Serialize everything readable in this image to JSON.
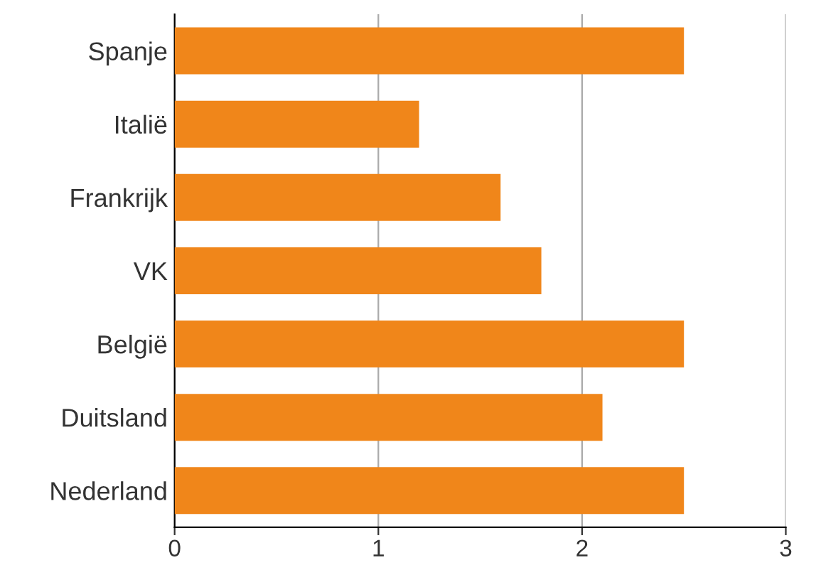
{
  "chart_data": {
    "type": "bar",
    "orientation": "horizontal",
    "categories": [
      "Spanje",
      "Italië",
      "Frankrijk",
      "VK",
      "België",
      "Duitsland",
      "Nederland"
    ],
    "values": [
      2.5,
      1.2,
      1.6,
      1.8,
      2.5,
      2.1,
      2.5
    ],
    "color": "#f0861a",
    "xlim": [
      0,
      3
    ],
    "xticks": [
      0,
      1,
      2,
      3
    ],
    "grid": "x"
  }
}
